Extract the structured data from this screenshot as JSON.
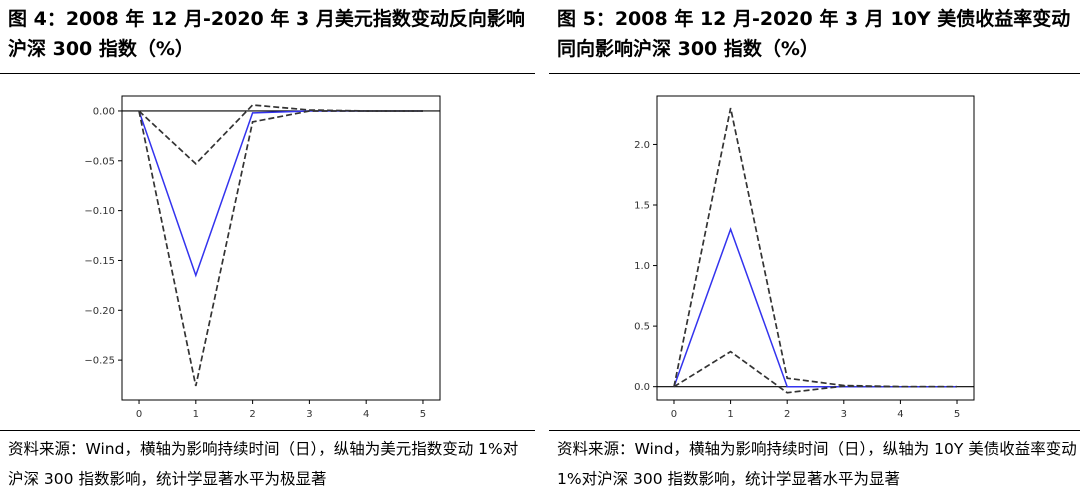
{
  "colors": {
    "irf": "#3333ee",
    "bands": "#333333",
    "zero_line": "#000000"
  },
  "panels": [
    {
      "title": "图 4：2008 年 12 月-2020 年 3 月美元指数变动反向影响沪深 300 指数（%）",
      "source": "资料来源：Wind，横轴为影响持续时间（日），纵轴为美元指数变动 1%对沪深 300 指数影响，统计学显著水平为极显著"
    },
    {
      "title": "图 5：2008 年 12 月-2020 年 3 月 10Y 美债收益率变动同向影响沪深 300 指数（%）",
      "source": "资料来源：Wind，横轴为影响持续时间（日），纵轴为 10Y 美债收益率变动 1%对沪深 300 指数影响，统计学显著水平为显著"
    }
  ],
  "chart_data": [
    {
      "type": "line",
      "title": "",
      "xlabel": "",
      "ylabel": "",
      "x": [
        0,
        1,
        2,
        3,
        4,
        5
      ],
      "xlim": [
        -0.3,
        5.3
      ],
      "ylim": [
        -0.29,
        0.015
      ],
      "xticks": [
        0,
        1,
        2,
        3,
        4,
        5
      ],
      "yticks": [
        0.0,
        -0.05,
        -0.1,
        -0.15,
        -0.2,
        -0.25
      ],
      "ytick_labels": [
        "0.00",
        "−0.05",
        "−0.10",
        "−0.15",
        "−0.20",
        "−0.25"
      ],
      "grid": false,
      "zero_line": true,
      "series": [
        {
          "values": [
            0,
            -0.165,
            -0.002,
            0,
            0,
            0
          ],
          "style": "solid",
          "color": "#3333ee"
        },
        {
          "values": [
            0,
            -0.053,
            0.006,
            0.001,
            0,
            0
          ],
          "style": "dashed",
          "color": "#333333"
        },
        {
          "values": [
            0,
            -0.276,
            -0.011,
            0,
            0,
            0
          ],
          "style": "dashed",
          "color": "#333333"
        }
      ]
    },
    {
      "type": "line",
      "title": "",
      "xlabel": "",
      "ylabel": "",
      "x": [
        0,
        1,
        2,
        3,
        4,
        5
      ],
      "xlim": [
        -0.3,
        5.3
      ],
      "ylim": [
        -0.11,
        2.4
      ],
      "xticks": [
        0,
        1,
        2,
        3,
        4,
        5
      ],
      "yticks": [
        0.0,
        0.5,
        1.0,
        1.5,
        2.0
      ],
      "ytick_labels": [
        "0.0",
        "0.5",
        "1.0",
        "1.5",
        "2.0"
      ],
      "grid": false,
      "zero_line": true,
      "series": [
        {
          "values": [
            0,
            1.3,
            0.0,
            0,
            0,
            0
          ],
          "style": "solid",
          "color": "#3333ee"
        },
        {
          "values": [
            0,
            2.3,
            0.07,
            0.01,
            0,
            0
          ],
          "style": "dashed",
          "color": "#333333"
        },
        {
          "values": [
            0,
            0.29,
            -0.05,
            0.005,
            0,
            0
          ],
          "style": "dashed",
          "color": "#333333"
        }
      ]
    }
  ]
}
